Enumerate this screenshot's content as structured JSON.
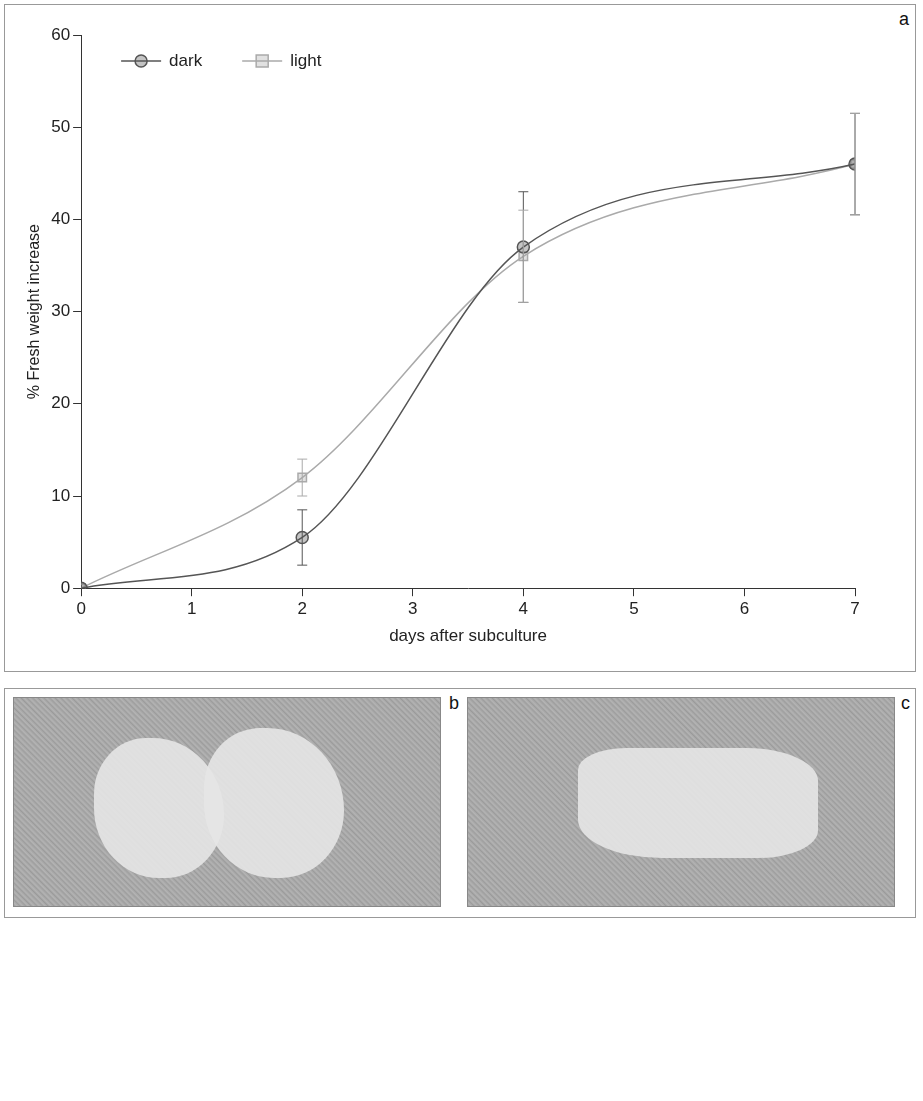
{
  "chart_data": {
    "type": "line",
    "panel_label": "a",
    "x_label": "days after subculture",
    "y_label": "% Fresh weight increase",
    "x": [
      0,
      2,
      4,
      7
    ],
    "series": [
      {
        "name": "dark",
        "color": "#555555",
        "marker": "circle",
        "line_style": "solid",
        "values": [
          0,
          5.5,
          37,
          46
        ],
        "errors": [
          0,
          3,
          6,
          5.5
        ]
      },
      {
        "name": "light",
        "color": "#aaaaaa",
        "marker": "square",
        "line_style": "solid",
        "values": [
          0,
          12,
          36,
          46
        ],
        "errors": [
          0,
          2,
          5,
          5.5
        ]
      }
    ],
    "xlim": [
      0,
      7
    ],
    "xticks": [
      0,
      1,
      2,
      3,
      4,
      5,
      6,
      7
    ],
    "ylim": [
      0,
      60
    ],
    "yticks": [
      0,
      10,
      20,
      30,
      40,
      50,
      60
    ],
    "grid": false,
    "legend": "upper left"
  },
  "photos": [
    {
      "panel_label": "b"
    },
    {
      "panel_label": "c"
    }
  ]
}
